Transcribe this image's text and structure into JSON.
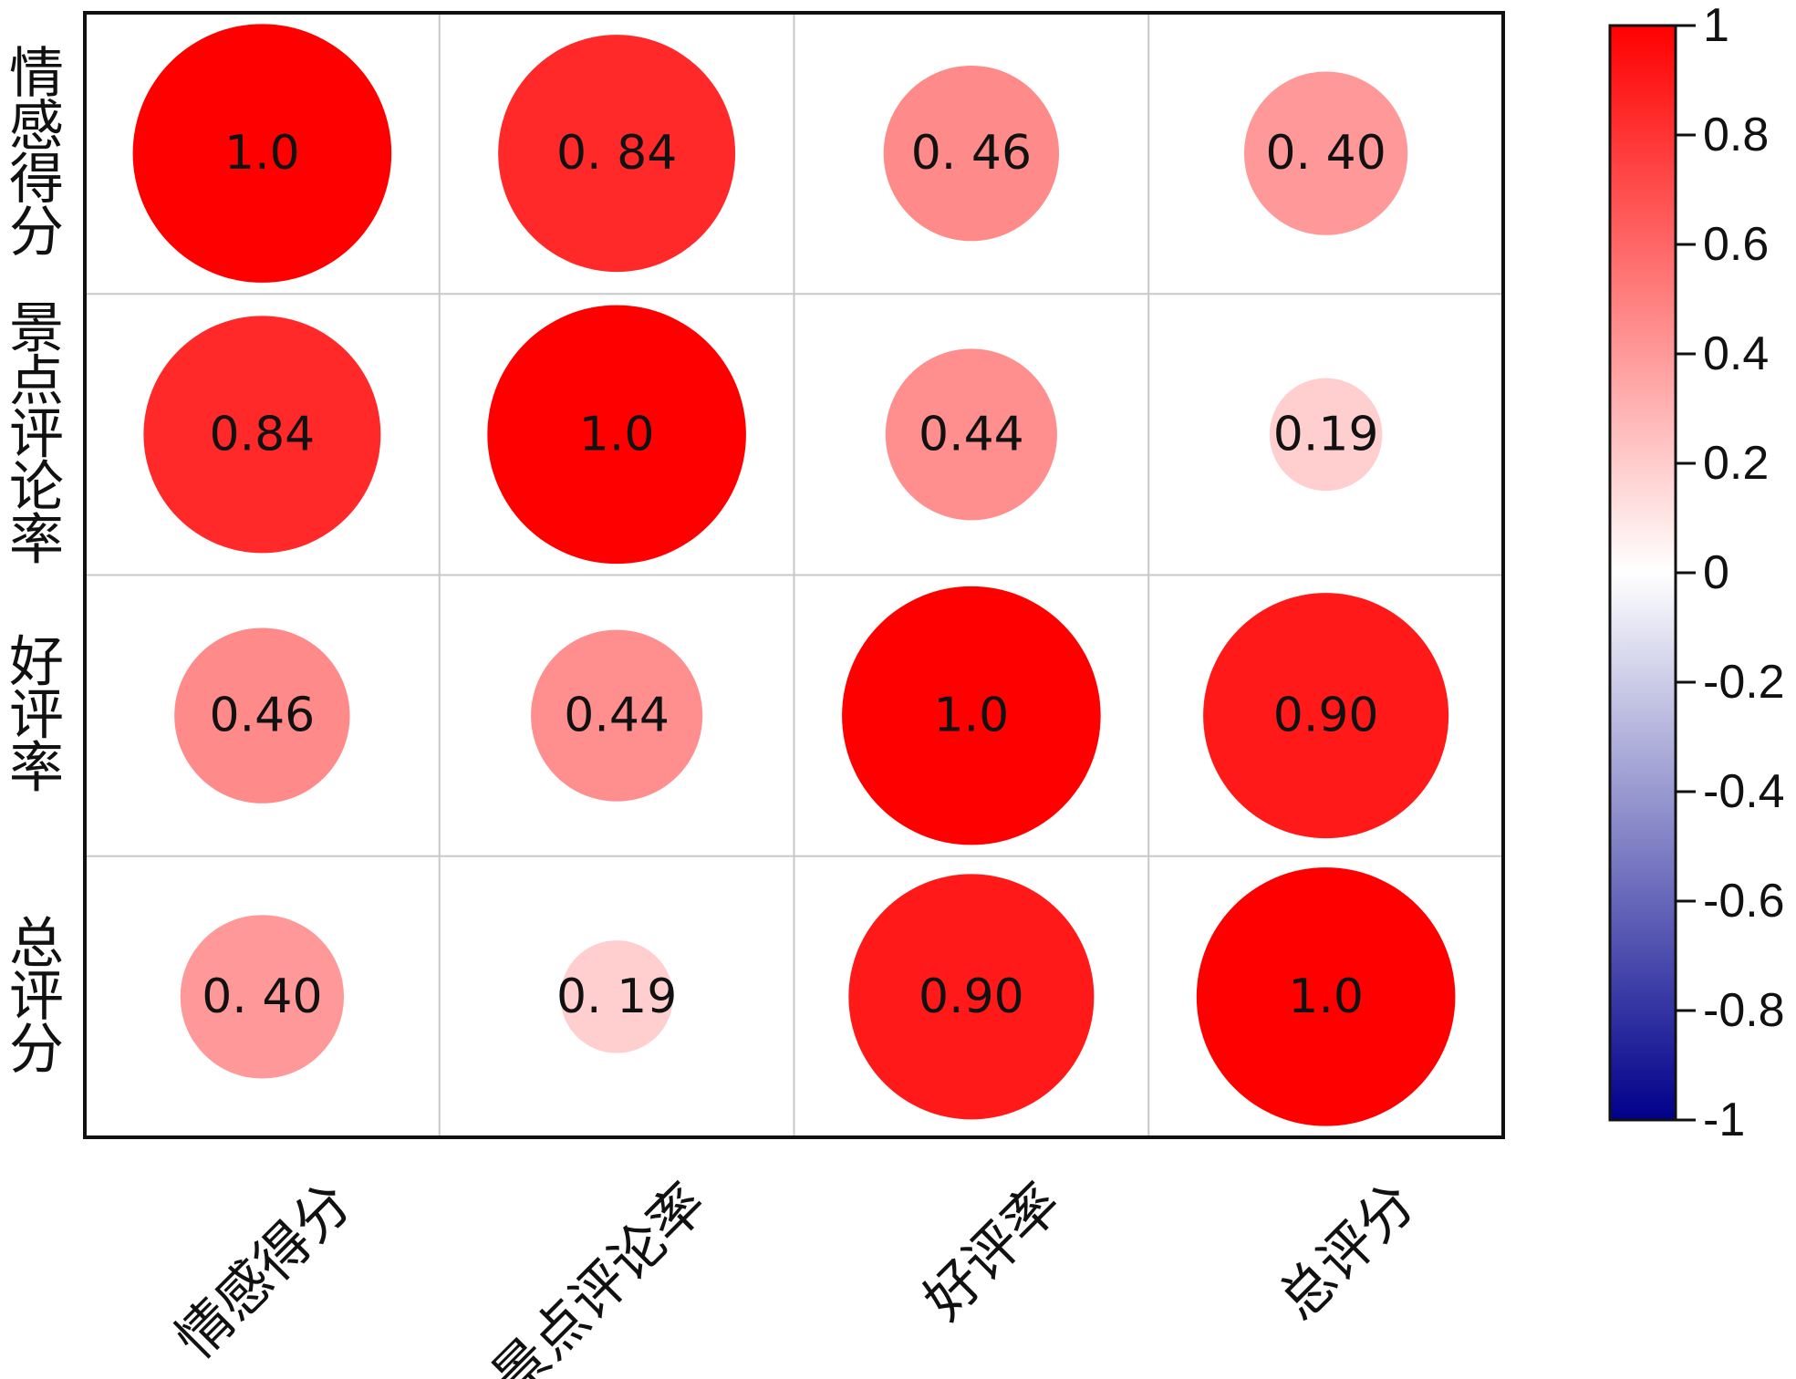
{
  "chart_data": {
    "type": "heatmap",
    "variables": [
      "情感得分",
      "景点评论率",
      "好评率",
      "总评分"
    ],
    "row_labels": [
      "情感得分",
      "景点评论率",
      "好评率",
      "总评分"
    ],
    "col_labels": [
      "情感得分",
      "景点评论率",
      "好评率",
      "总评分"
    ],
    "matrix": [
      [
        1.0,
        0.84,
        0.46,
        0.4
      ],
      [
        0.84,
        1.0,
        0.44,
        0.19
      ],
      [
        0.46,
        0.44,
        1.0,
        0.9
      ],
      [
        0.4,
        0.19,
        0.9,
        1.0
      ]
    ],
    "cell_text": [
      [
        "1.0",
        "0. 84",
        "0. 46",
        "0. 40"
      ],
      [
        "0.84",
        "1.0",
        "0.44",
        "0.19"
      ],
      [
        "0.46",
        "0.44",
        "1.0",
        "0.90"
      ],
      [
        "0. 40",
        "0. 19",
        "0.90",
        "1.0"
      ]
    ],
    "colorbar": {
      "range": [
        -1,
        1
      ],
      "ticks": [
        1,
        0.8,
        0.6,
        0.4,
        0.2,
        0,
        -0.2,
        -0.4,
        -0.6,
        -0.8,
        -1
      ],
      "tick_labels": [
        "1",
        "0.8",
        "0.6",
        "0.4",
        "0.2",
        "0",
        "-0.2",
        "-0.4",
        "-0.6",
        "-0.8",
        "-1"
      ],
      "color_high": "#ff0000",
      "color_mid": "#ffffff",
      "color_low": "#00008b",
      "placement": "right"
    },
    "grid": true
  }
}
